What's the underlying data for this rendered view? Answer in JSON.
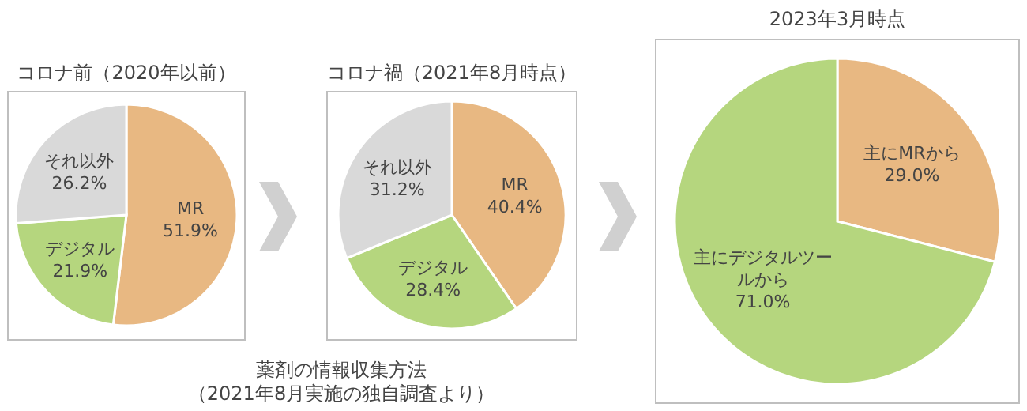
{
  "chart_data": [
    {
      "type": "pie",
      "title": "コロナ前（2020年以前）",
      "categories": [
        "MR",
        "デジタル",
        "それ以外"
      ],
      "values": [
        51.9,
        21.9,
        26.2
      ],
      "value_labels": [
        "51.9%",
        "21.9%",
        "26.2%"
      ],
      "colors": [
        "#e8b882",
        "#b5d67e",
        "#d9d9d9"
      ]
    },
    {
      "type": "pie",
      "title": "コロナ禍（2021年8月時点）",
      "categories": [
        "MR",
        "デジタル",
        "それ以外"
      ],
      "values": [
        40.4,
        28.4,
        31.2
      ],
      "value_labels": [
        "40.4%",
        "28.4%",
        "31.2%"
      ],
      "colors": [
        "#e8b882",
        "#b5d67e",
        "#d9d9d9"
      ],
      "annotations": [
        "薬剤の情報収集方法",
        "（2021年8月実施の独自調査より）"
      ]
    },
    {
      "type": "pie",
      "title": "2023年3月時点",
      "categories": [
        "主にMRから",
        "主にデジタルツールから"
      ],
      "values": [
        29.0,
        71.0
      ],
      "value_labels": [
        "29.0%",
        "71.0%"
      ],
      "colors": [
        "#e8b882",
        "#b5d67e"
      ]
    }
  ]
}
